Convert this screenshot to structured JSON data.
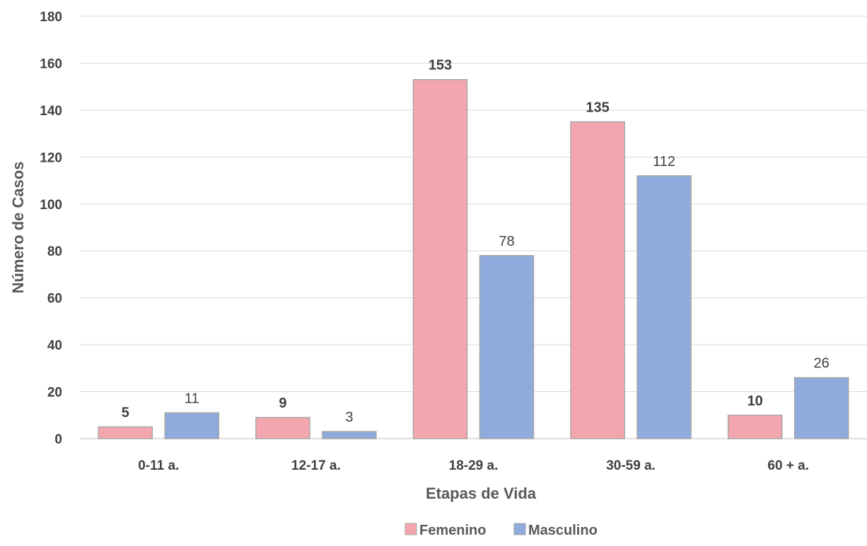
{
  "chart_data": {
    "type": "bar",
    "title": "",
    "xlabel": "Etapas de Vida",
    "ylabel": "Número de Casos",
    "ylim": [
      0,
      180
    ],
    "yticks": [
      0,
      20,
      40,
      60,
      80,
      100,
      120,
      140,
      160,
      180
    ],
    "categories": [
      "0-11 a.",
      "12-17 a.",
      "18-29 a.",
      "30-59 a.",
      "60 + a."
    ],
    "grid": true,
    "legend_position": "bottom",
    "series": [
      {
        "name": "Femenino",
        "values": [
          5,
          9,
          153,
          135,
          10
        ],
        "color": "#F4A6AE",
        "label_style": "bold"
      },
      {
        "name": "Masculino",
        "values": [
          11,
          3,
          78,
          112,
          26
        ],
        "color": "#8FAADC",
        "label_style": "regular"
      }
    ]
  }
}
